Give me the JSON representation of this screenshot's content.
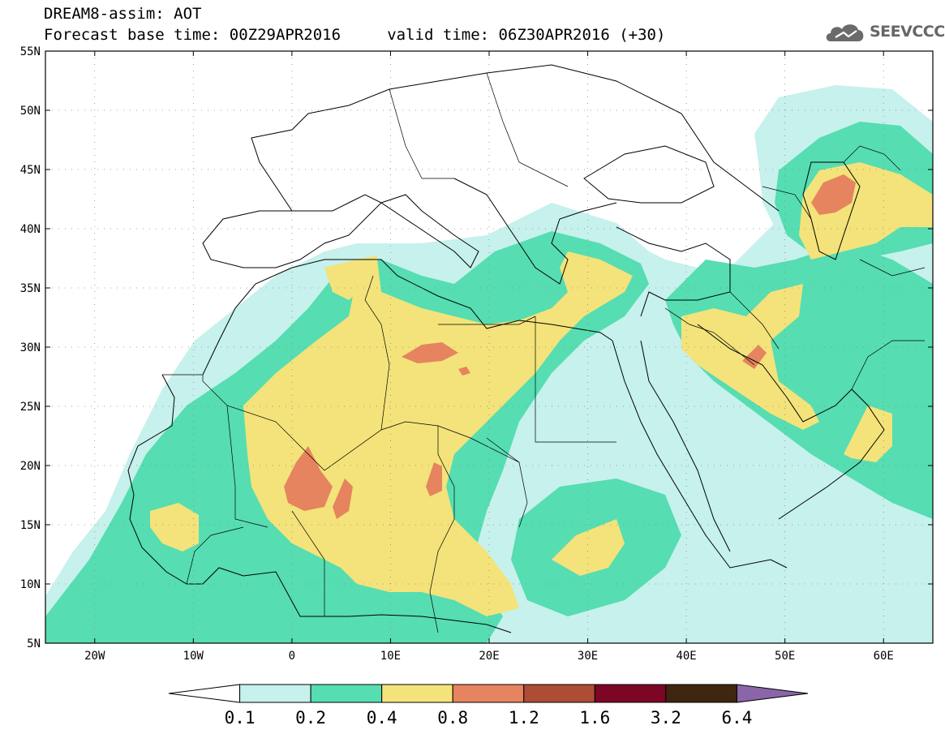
{
  "header": {
    "line1": "DREAM8-assim: AOT",
    "line2": "Forecast base time: 00Z29APR2016     valid time: 06Z30APR2016 (+30)"
  },
  "logo": {
    "icon": "cloud-icon",
    "text": "SEEVCCC",
    "color": "#6b6b6b"
  },
  "map": {
    "lon_range": [
      -25,
      65
    ],
    "lat_range": [
      5,
      55
    ],
    "lat_ticks": [
      {
        "value": 55,
        "label": "55N"
      },
      {
        "value": 50,
        "label": "50N"
      },
      {
        "value": 45,
        "label": "45N"
      },
      {
        "value": 40,
        "label": "40N"
      },
      {
        "value": 35,
        "label": "35N"
      },
      {
        "value": 30,
        "label": "30N"
      },
      {
        "value": 25,
        "label": "25N"
      },
      {
        "value": 20,
        "label": "20N"
      },
      {
        "value": 15,
        "label": "15N"
      },
      {
        "value": 10,
        "label": "10N"
      },
      {
        "value": 5,
        "label": "5N"
      }
    ],
    "lon_ticks": [
      {
        "value": -20,
        "label": "20W"
      },
      {
        "value": -10,
        "label": "10W"
      },
      {
        "value": 0,
        "label": "0"
      },
      {
        "value": 10,
        "label": "10E"
      },
      {
        "value": 20,
        "label": "20E"
      },
      {
        "value": 30,
        "label": "30E"
      },
      {
        "value": 40,
        "label": "40E"
      },
      {
        "value": 50,
        "label": "50E"
      },
      {
        "value": 60,
        "label": "60E"
      }
    ],
    "grid": "dotted"
  },
  "colorbar": {
    "labels": [
      "0.1",
      "0.2",
      "0.4",
      "0.8",
      "1.2",
      "1.6",
      "3.2",
      "6.4"
    ],
    "colors": [
      "#ffffff",
      "#c6f1ec",
      "#56ddb2",
      "#f3e37a",
      "#e6845f",
      "#ad4d35",
      "#7c0624",
      "#3e2611",
      "#8a66a9"
    ]
  }
}
